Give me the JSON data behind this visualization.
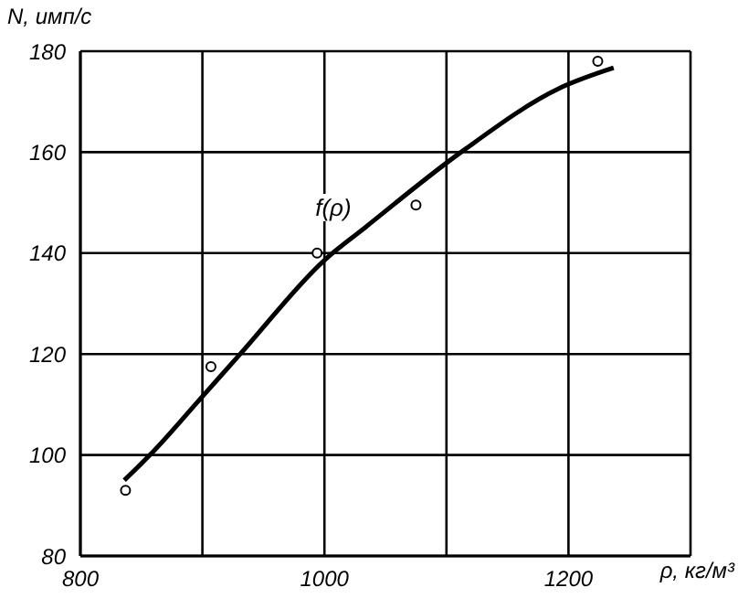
{
  "chart_data": {
    "type": "scatter",
    "xlabel": "ρ, кг/м³",
    "ylabel": "N, имп/с",
    "xlim": [
      800,
      1300
    ],
    "xticks": [
      800,
      {
        "value": 900,
        "label": null
      },
      1000,
      {
        "value": 1100,
        "label": null
      },
      1200
    ],
    "ylim": [
      80,
      180
    ],
    "yticks": [
      80,
      100,
      120,
      140,
      160,
      180
    ],
    "grid": true,
    "series": [
      {
        "color": "#000000",
        "marker": "circle",
        "x": [
          837,
          907,
          994,
          1075,
          1224
        ],
        "values": [
          93,
          117.5,
          140,
          149.5,
          178
        ]
      },
      {
        "type": "line",
        "name": "f(ρ)",
        "color": "#000000",
        "marker": "none",
        "line_style": "solid",
        "x": [
          836,
          857,
          900,
          931,
          1000,
          1033,
          1112,
          1193,
          1237
        ],
        "values": [
          95,
          100,
          111.6,
          120,
          138.6,
          145,
          160,
          172.7,
          176.7
        ]
      }
    ]
  }
}
